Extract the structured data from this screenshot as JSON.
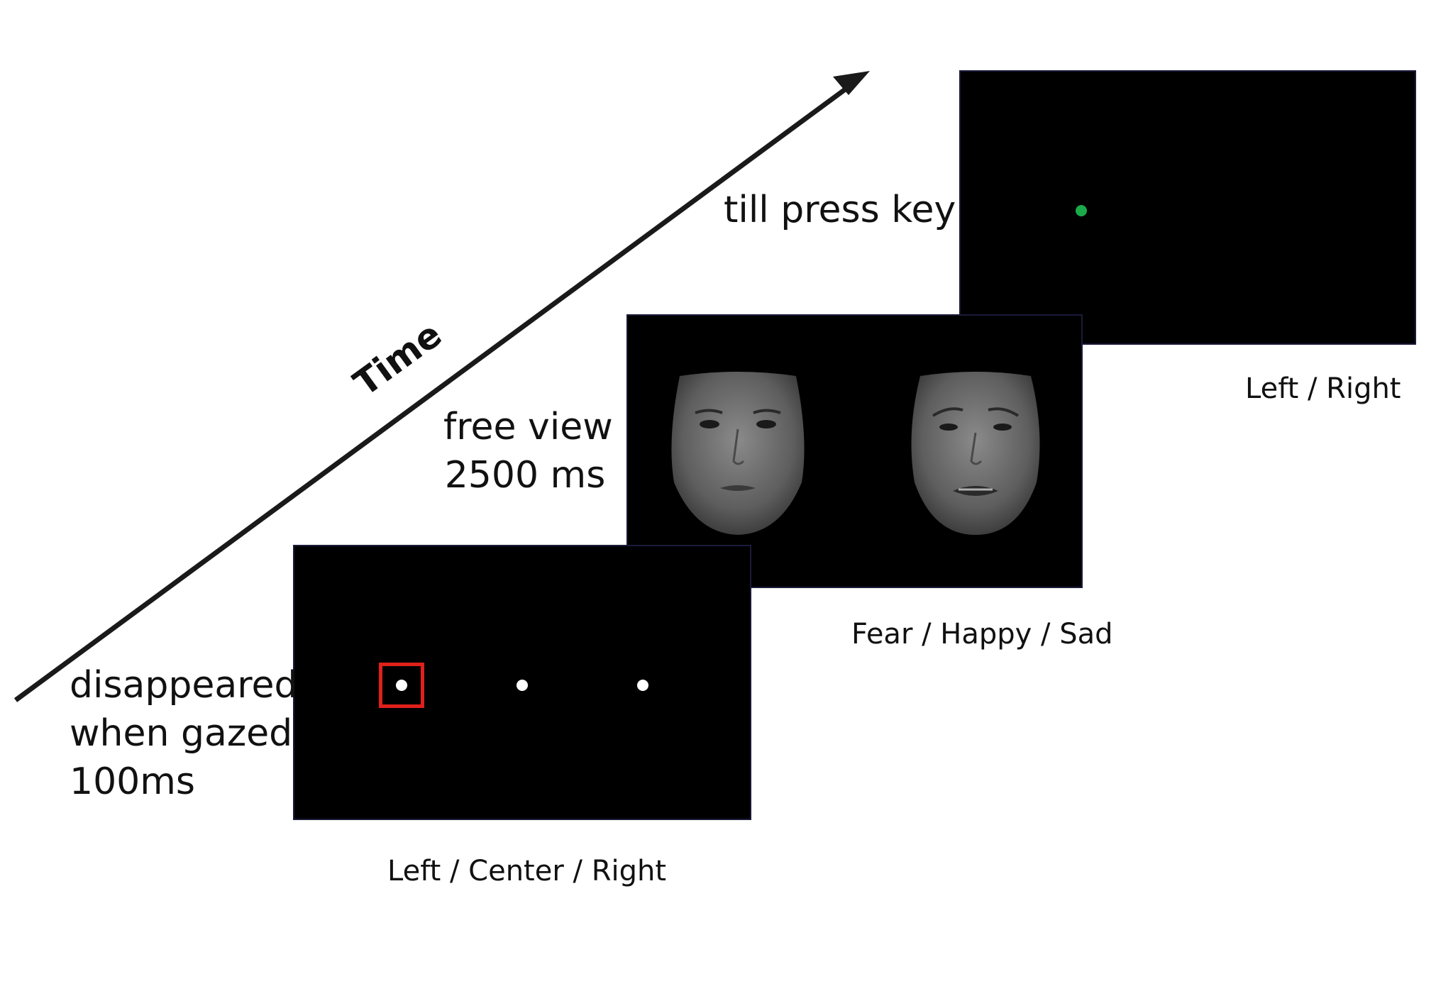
{
  "axis": {
    "time_label": "Time"
  },
  "stages": [
    {
      "id": "fixation",
      "description_lines": [
        "disappeared",
        "when gazed",
        "100ms"
      ],
      "caption": "Left / Center / Right",
      "dot_color": "#ffffff",
      "highlight_color": "#e0201b"
    },
    {
      "id": "faces",
      "description_lines": [
        "free view",
        "2500 ms"
      ],
      "caption": "Fear / Happy / Sad"
    },
    {
      "id": "response",
      "description_lines": [
        "till press key"
      ],
      "caption": "Left / Right",
      "dot_color": "#1aaa4a"
    }
  ],
  "colors": {
    "screen_bg": "#000000",
    "arrow": "#111111"
  }
}
